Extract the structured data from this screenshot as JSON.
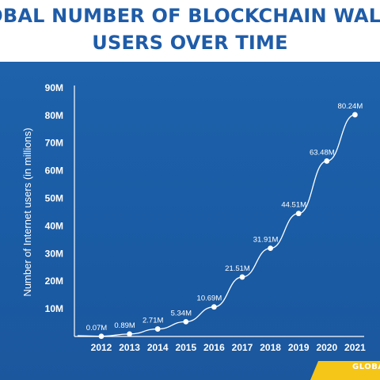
{
  "header": {
    "title_line1": "OBAL NUMBER OF BLOCKCHAIN WALL",
    "title_line2": "USERS OVER TIME"
  },
  "colors": {
    "title": "#1f5ca8",
    "panel": "#1d62ab",
    "line": "#ffffff",
    "accent": "#f5c518"
  },
  "logo": {
    "text": "GLOBAL"
  },
  "chart_data": {
    "type": "line",
    "ylabel": "Number of Internet users (in millions)",
    "xlabel": "",
    "ylim": [
      0,
      90
    ],
    "y_ticks": [
      "10M",
      "20M",
      "30M",
      "40M",
      "50M",
      "60M",
      "70M",
      "80M",
      "90M"
    ],
    "y_tick_values": [
      10,
      20,
      30,
      40,
      50,
      60,
      70,
      80,
      90
    ],
    "grid": false,
    "series": [
      {
        "categories": [
          "2012",
          "2013",
          "2014",
          "2015",
          "2016",
          "2017",
          "2018",
          "2019",
          "2020",
          "2021"
        ],
        "values": [
          0.07,
          0.89,
          2.71,
          5.34,
          10.69,
          21.51,
          31.91,
          44.51,
          63.48,
          80.24
        ],
        "labels": [
          "0.07M",
          "0.89M",
          "2.71M",
          "5.34M",
          "10.69M",
          "21.51M",
          "31.91M",
          "44.51M",
          "63.48M",
          "80.24M"
        ]
      }
    ]
  }
}
